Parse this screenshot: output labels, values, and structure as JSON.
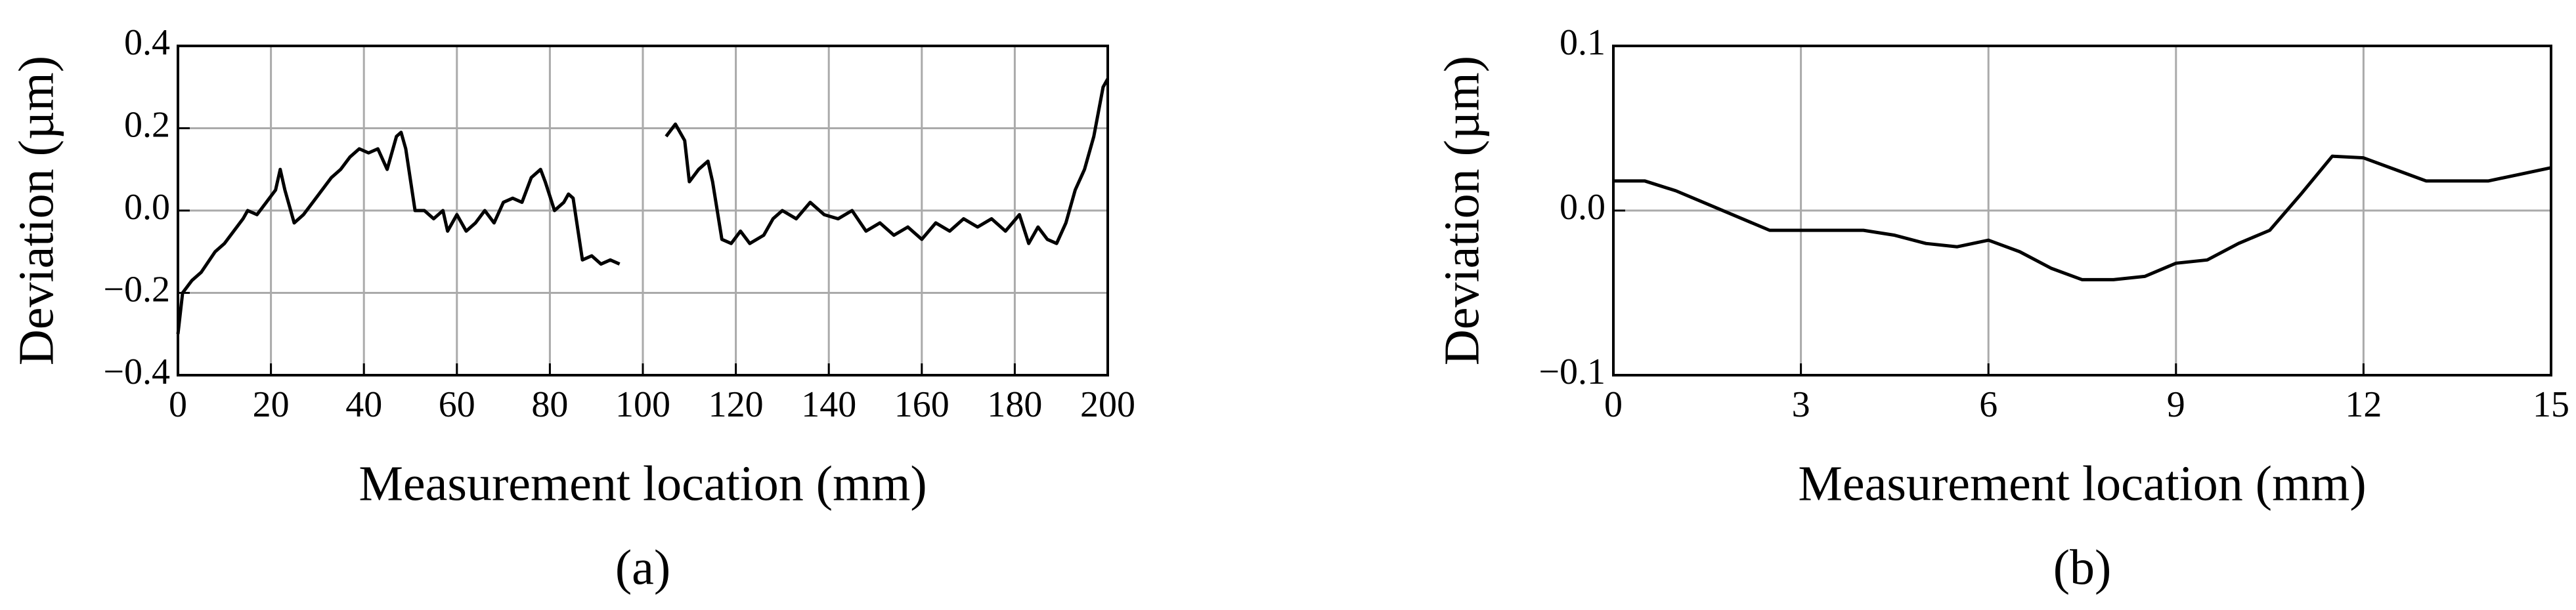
{
  "chart_data": [
    {
      "type": "line",
      "caption": "(a)",
      "x_label": "Measurement location (mm)",
      "y_label": "Deviation (µm)",
      "color": "#000000",
      "grid": true,
      "xlim": [
        0,
        200
      ],
      "xticks": [
        0,
        20,
        40,
        60,
        80,
        100,
        120,
        140,
        160,
        180,
        200
      ],
      "ylim": [
        -0.4,
        0.4
      ],
      "yticks": [
        {
          "value": -0.4,
          "label": "−0.4"
        },
        {
          "value": -0.2,
          "label": "−0.2"
        },
        {
          "value": 0,
          "label": "0.0"
        },
        0.2,
        0.4
      ],
      "x": [
        0,
        1,
        3,
        5,
        8,
        10,
        12,
        14,
        15,
        17,
        19,
        21,
        22,
        23,
        25,
        27,
        29,
        31,
        33,
        35,
        37,
        39,
        41,
        43,
        45,
        47,
        48,
        49,
        51,
        53,
        55,
        57,
        58,
        60,
        62,
        64,
        66,
        68,
        70,
        72,
        74,
        76,
        78,
        79,
        81,
        83,
        84,
        85,
        87,
        89,
        91,
        93,
        95,
        null,
        105,
        107,
        109,
        110,
        112,
        114,
        115,
        117,
        119,
        121,
        123,
        126,
        128,
        130,
        133,
        136,
        139,
        142,
        145,
        148,
        151,
        154,
        157,
        160,
        163,
        166,
        169,
        172,
        175,
        178,
        181,
        183,
        185,
        187,
        189,
        191,
        193,
        195,
        197,
        199,
        200
      ],
      "values": [
        -0.3,
        -0.2,
        -0.17,
        -0.15,
        -0.1,
        -0.08,
        -0.05,
        -0.02,
        0.0,
        -0.01,
        0.02,
        0.05,
        0.1,
        0.05,
        -0.03,
        -0.01,
        0.02,
        0.05,
        0.08,
        0.1,
        0.13,
        0.15,
        0.14,
        0.15,
        0.1,
        0.18,
        0.19,
        0.15,
        0.0,
        0.0,
        -0.02,
        0.0,
        -0.05,
        -0.01,
        -0.05,
        -0.03,
        0.0,
        -0.03,
        0.02,
        0.03,
        0.02,
        0.08,
        0.1,
        0.07,
        0.0,
        0.02,
        0.04,
        0.03,
        -0.12,
        -0.11,
        -0.13,
        -0.12,
        -0.13,
        null,
        0.18,
        0.21,
        0.17,
        0.07,
        0.1,
        0.12,
        0.07,
        -0.07,
        -0.08,
        -0.05,
        -0.08,
        -0.06,
        -0.02,
        0.0,
        -0.02,
        0.02,
        -0.01,
        -0.02,
        0.0,
        -0.05,
        -0.03,
        -0.06,
        -0.04,
        -0.07,
        -0.03,
        -0.05,
        -0.02,
        -0.04,
        -0.02,
        -0.05,
        -0.01,
        -0.08,
        -0.04,
        -0.07,
        -0.08,
        -0.03,
        0.05,
        0.1,
        0.18,
        0.3,
        0.32
      ]
    },
    {
      "type": "line",
      "caption": "(b)",
      "x_label": "Measurement location (mm)",
      "y_label": "Deviation (µm)",
      "color": "#000000",
      "grid": true,
      "xlim": [
        0,
        15
      ],
      "xticks": [
        0,
        3,
        6,
        9,
        12,
        15
      ],
      "ylim": [
        -0.1,
        0.1
      ],
      "yticks": [
        {
          "value": -0.1,
          "label": "−0.1"
        },
        {
          "value": 0,
          "label": "0.0"
        },
        0.1
      ],
      "x": [
        0,
        0.5,
        1,
        1.5,
        2,
        2.5,
        3,
        4,
        4.5,
        5,
        5.5,
        6,
        6.5,
        7,
        7.5,
        8,
        8.5,
        9,
        9.5,
        10,
        10.5,
        11,
        11.5,
        12,
        12.5,
        13,
        14,
        14.5,
        15
      ],
      "values": [
        0.018,
        0.018,
        0.012,
        0.004,
        -0.004,
        -0.012,
        -0.012,
        -0.012,
        -0.015,
        -0.02,
        -0.022,
        -0.018,
        -0.025,
        -0.035,
        -0.042,
        -0.042,
        -0.04,
        -0.032,
        -0.03,
        -0.02,
        -0.012,
        0.01,
        0.033,
        0.032,
        0.025,
        0.018,
        0.018,
        0.022,
        0.026
      ]
    }
  ]
}
